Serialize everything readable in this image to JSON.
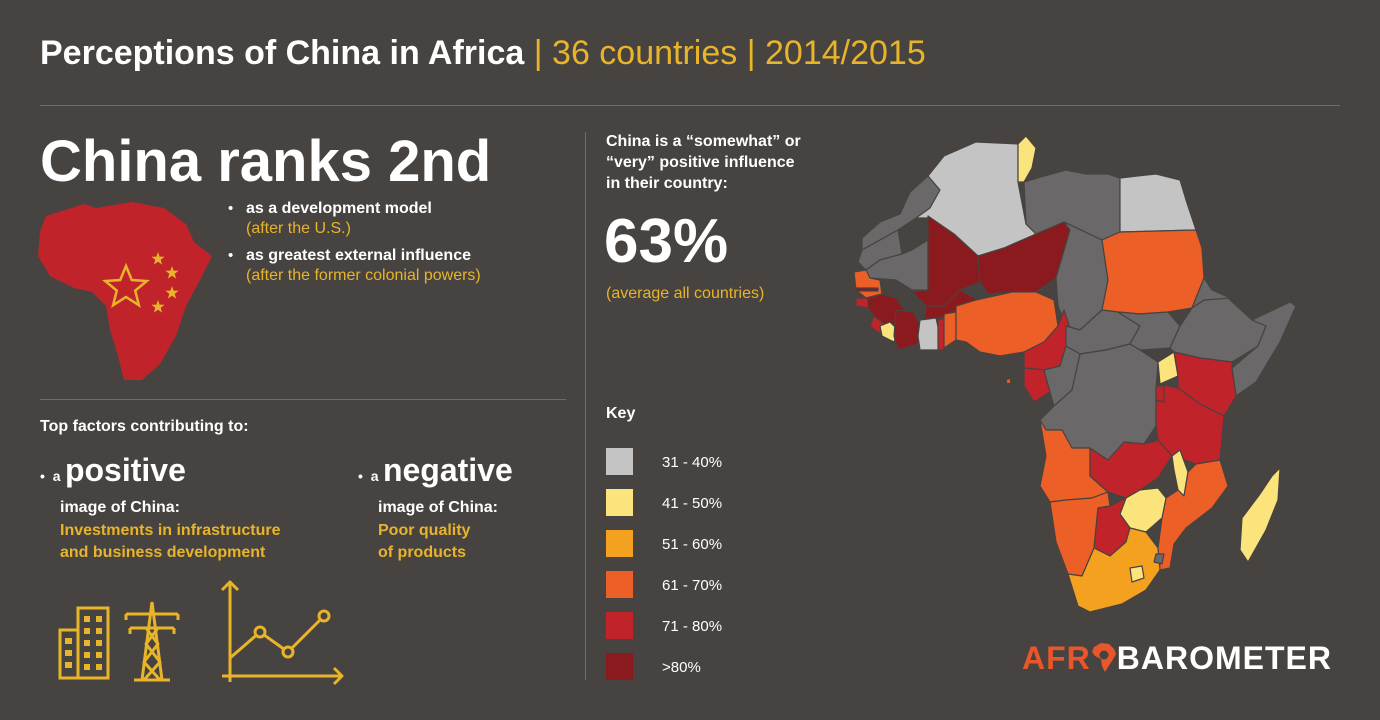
{
  "header": {
    "title": "Perceptions of China in Africa",
    "separator": "|",
    "countries": "36 countries",
    "years": "2014/2015"
  },
  "headline": "China ranks 2nd",
  "ranks": [
    {
      "main": "as a development model",
      "sub": "(after the U.S.)"
    },
    {
      "main": "as greatest external influence",
      "sub": "(after the former colonial powers)"
    }
  ],
  "factors": {
    "title": "Top factors contributing to:",
    "positive": {
      "lead": "a",
      "big": "positive",
      "image": "image of China:",
      "reason_line1": "Investments in infrastructure",
      "reason_line2": "and business development"
    },
    "negative": {
      "lead": "a",
      "big": "negative",
      "image": "image of China:",
      "reason_line1": "Poor quality",
      "reason_line2": "of products"
    }
  },
  "stat": {
    "label_line1": "China is a “somewhat” or",
    "label_line2": "“very” positive influence",
    "label_line3": "in their country:",
    "value": "63%",
    "note": "(average all countries)"
  },
  "key": {
    "title": "Key",
    "items": [
      {
        "label": "31 - 40%",
        "color": "#c4c4c4"
      },
      {
        "label": "41 - 50%",
        "color": "#fce47c"
      },
      {
        "label": "51 - 60%",
        "color": "#f3a11f"
      },
      {
        "label": "61 - 70%",
        "color": "#ec5f26"
      },
      {
        "label": "71 - 80%",
        "color": "#c0232a"
      },
      {
        "label": ">80%",
        "color": "#8b1a1e"
      }
    ]
  },
  "map_colors": {
    "no_data": "#6a6868",
    "c31_40": "#c4c4c4",
    "c41_50": "#fce47c",
    "c51_60": "#f3a11f",
    "c61_70": "#ec5f26",
    "c71_80": "#c0232a",
    "c80plus": "#8b1a1e"
  },
  "logo": {
    "part1": "AFR",
    "part2": "BAROMETER"
  },
  "icons": [
    "china-africa-flag-icon",
    "buildings-icon",
    "power-tower-icon",
    "line-graph-icon",
    "africa-logo-icon"
  ]
}
